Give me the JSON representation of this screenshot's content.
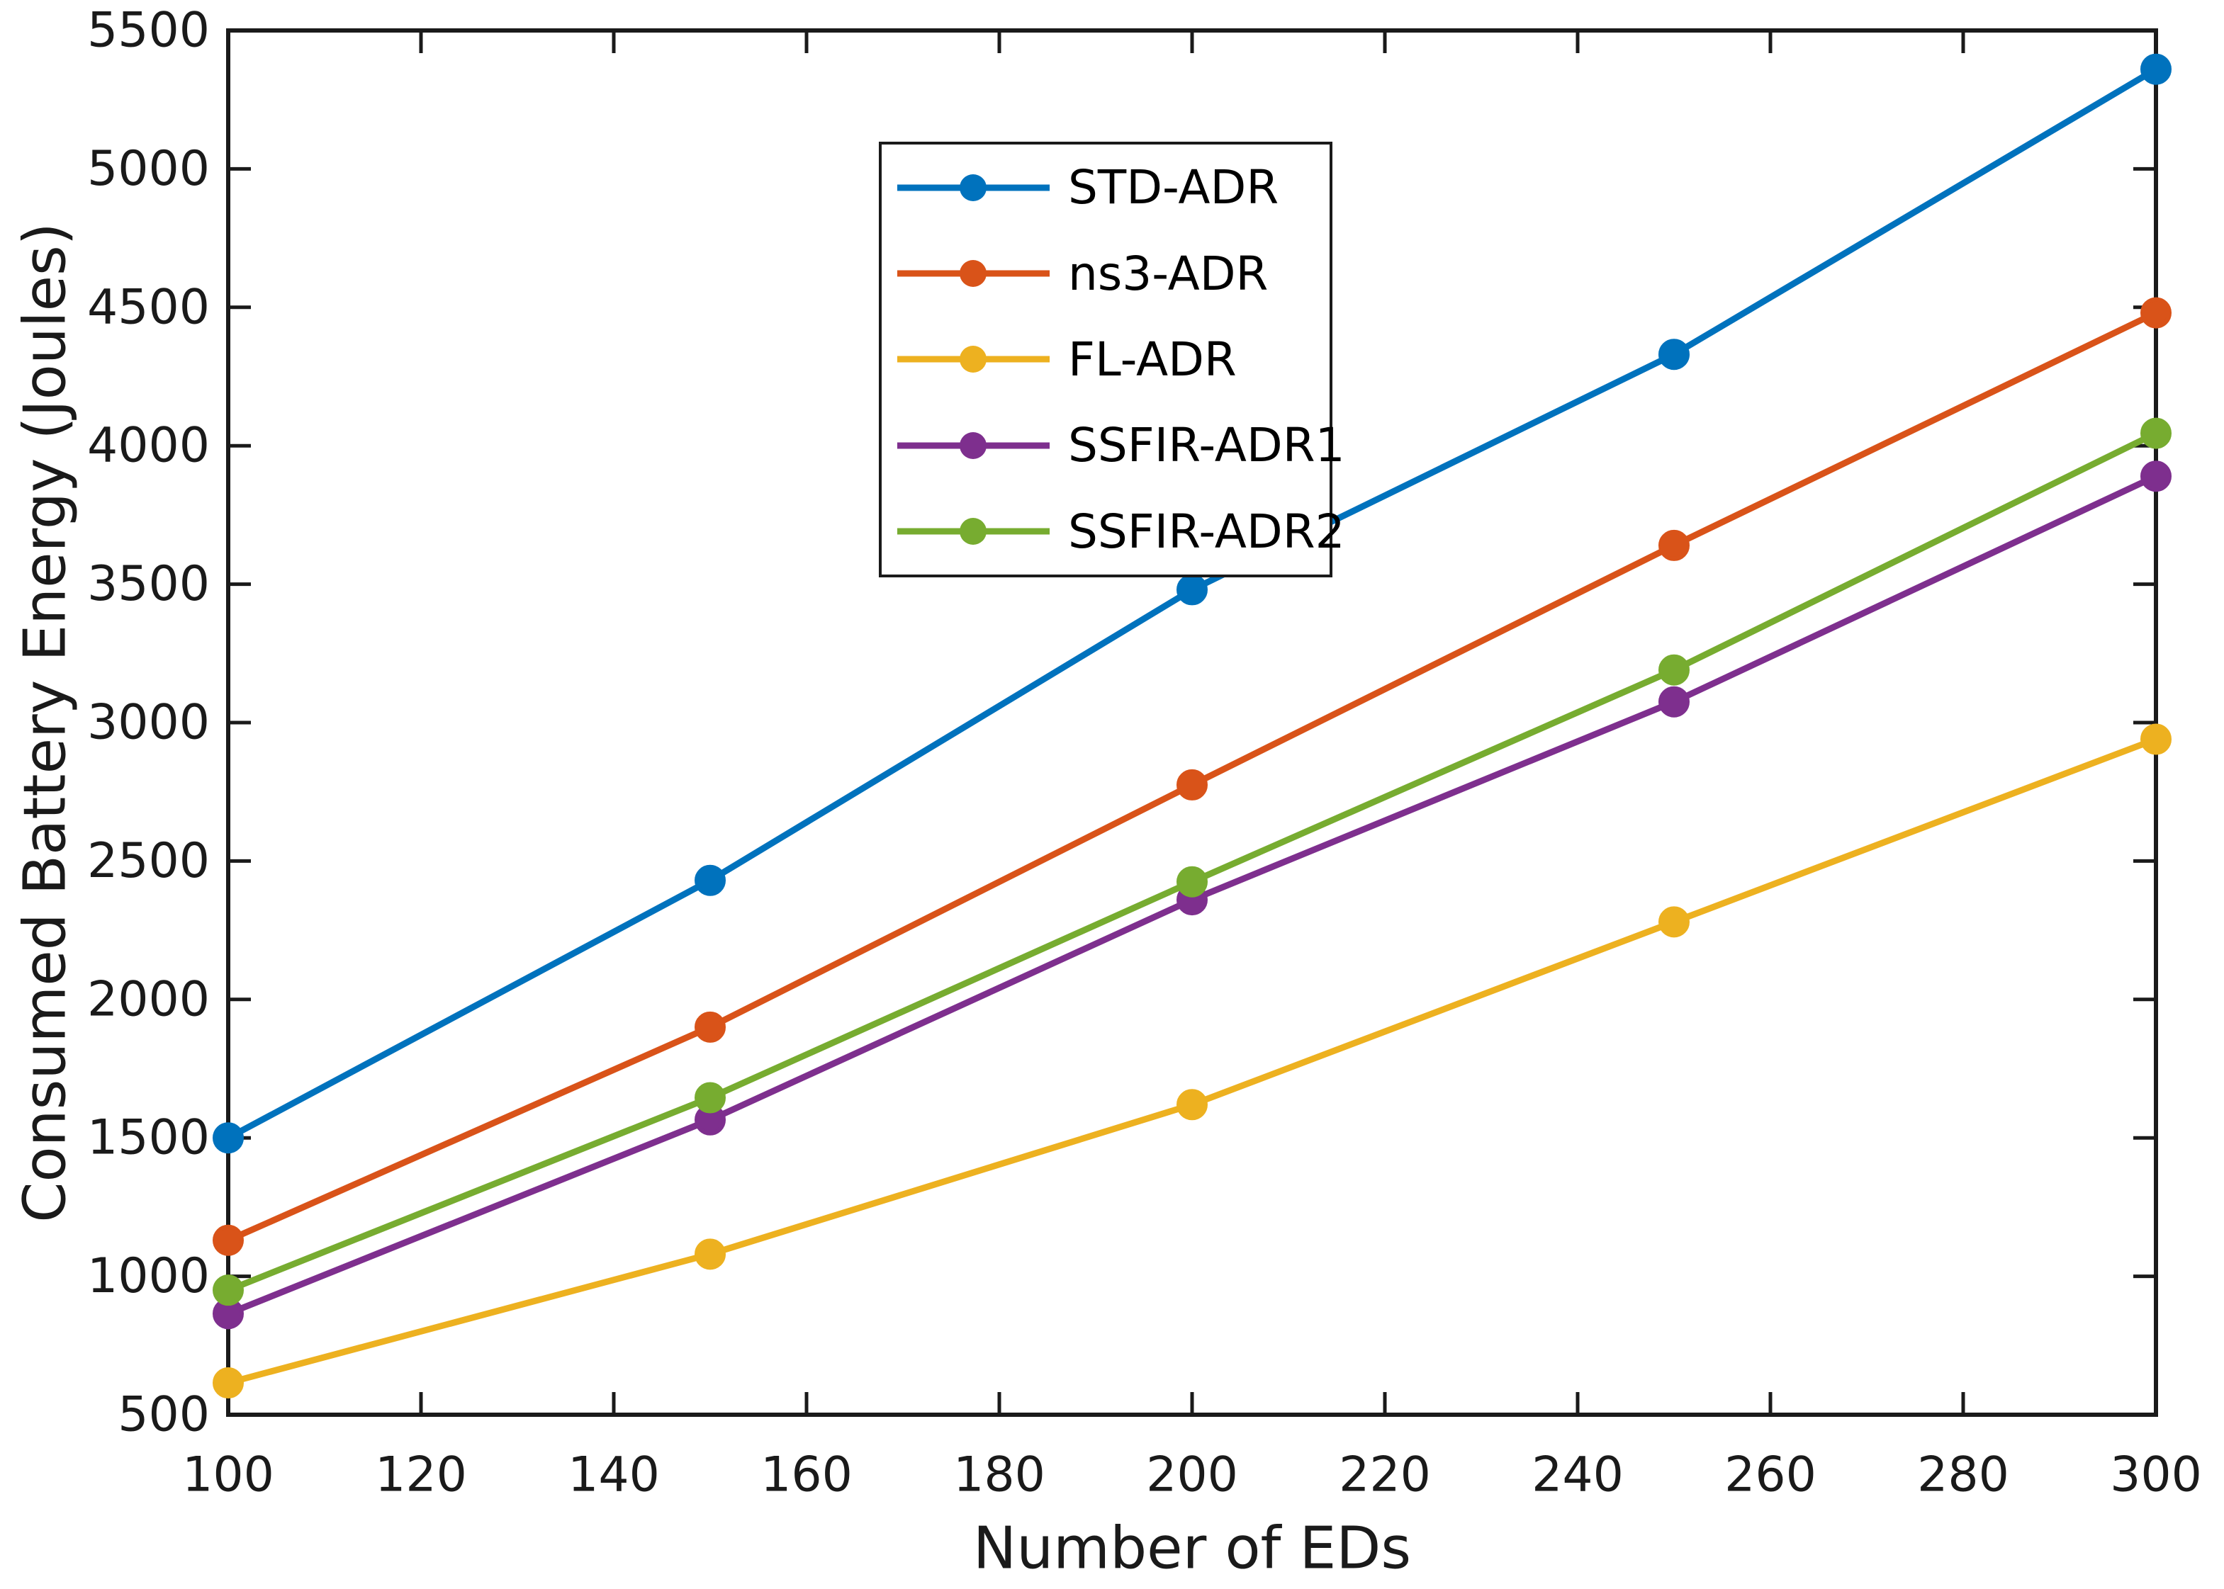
{
  "chart_data": {
    "type": "line",
    "title": "",
    "xlabel": "Number of EDs",
    "ylabel": "Consumed Battery Energy (Joules)",
    "x": [
      100,
      150,
      200,
      250,
      300
    ],
    "xlim": [
      100,
      300
    ],
    "ylim": [
      500,
      5500
    ],
    "xticks": [
      100,
      120,
      140,
      160,
      180,
      200,
      220,
      240,
      260,
      280,
      300
    ],
    "yticks": [
      500,
      1000,
      1500,
      2000,
      2500,
      3000,
      3500,
      4000,
      4500,
      5000,
      5500
    ],
    "grid": false,
    "legend_position": "inside upper-center-left",
    "marker": "circle",
    "axis_color": "#1a1a1a",
    "background_color": "#ffffff",
    "series": [
      {
        "name": "STD-ADR",
        "color": "#0072BD",
        "values": [
          1500,
          2430,
          3480,
          4330,
          5360
        ]
      },
      {
        "name": "ns3-ADR",
        "color": "#D95319",
        "values": [
          1130,
          1900,
          2775,
          3640,
          4480
        ]
      },
      {
        "name": "FL-ADR",
        "color": "#EDB120",
        "values": [
          615,
          1080,
          1620,
          2280,
          2940
        ]
      },
      {
        "name": "SSFIR-ADR1",
        "color": "#7E2F8E",
        "values": [
          865,
          1565,
          2360,
          3075,
          3890
        ]
      },
      {
        "name": "SSFIR-ADR2",
        "color": "#77AC30",
        "values": [
          950,
          1645,
          2425,
          3190,
          4045
        ]
      }
    ]
  }
}
